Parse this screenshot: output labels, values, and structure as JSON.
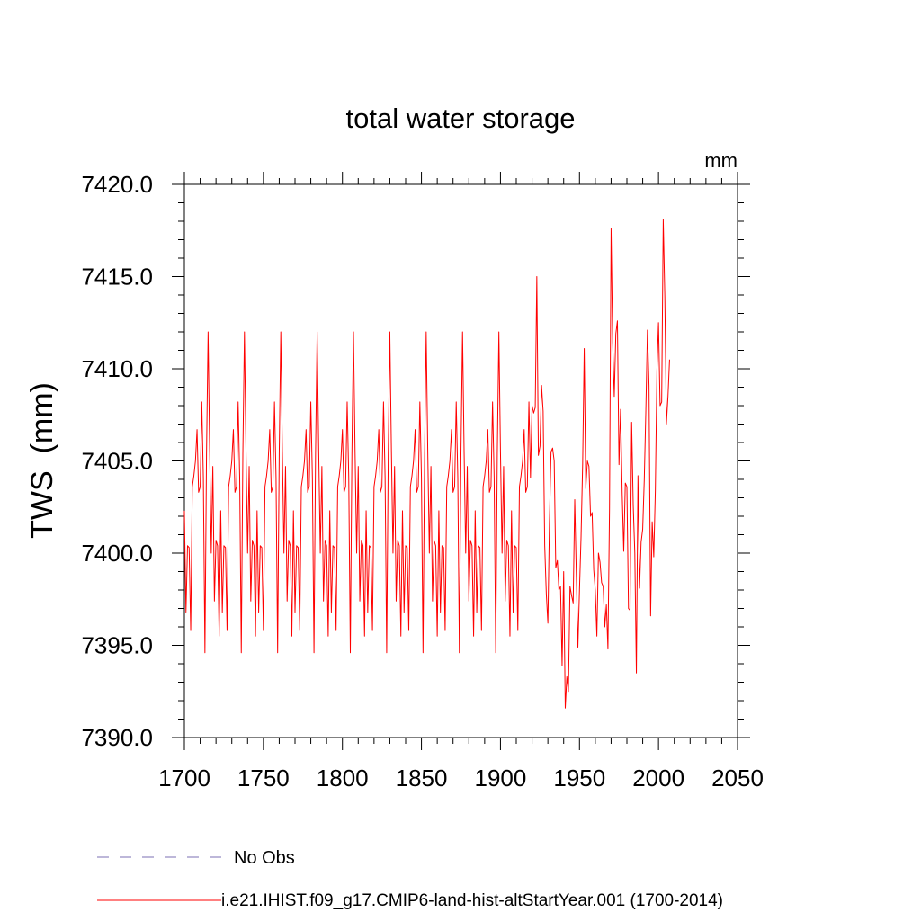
{
  "chart_data": {
    "type": "line",
    "title": "total water storage",
    "units_label": "mm",
    "ylabel": "TWS  (mm)",
    "xlabel": "",
    "xlim": [
      1700,
      2050
    ],
    "ylim": [
      7390,
      7420
    ],
    "x_ticks": [
      "1700",
      "1750",
      "1800",
      "1850",
      "1900",
      "1950",
      "2000",
      "2050"
    ],
    "y_ticks": [
      "7390.0",
      "7395.0",
      "7400.0",
      "7405.0",
      "7410.0",
      "7415.0",
      "7420.0"
    ],
    "legend_position": "bottom",
    "series": [
      {
        "name": "No Obs",
        "color": "#7b6fb3",
        "dash": "dashed",
        "x": [],
        "y": []
      },
      {
        "name": "i.e21.IHIST.f09_g17.CMIP6-land-hist-altStartYear.001 (1700-2014)",
        "color": "#ff0000",
        "dash": "solid",
        "x_start": 1700,
        "x_step": 1,
        "cycle_years": 1700,
        "cycle_values": [
          7402.3,
          7396.8,
          7400.4,
          7400.3,
          7395.8,
          7403.6,
          7404.2,
          7405.0,
          7406.7,
          7403.3,
          7403.6,
          7408.2,
          7404.1,
          7394.6,
          7405.4,
          7412.0,
          7405.5,
          7400.0,
          7404.7,
          7397.4,
          7400.7,
          7400.4,
          7395.5
        ],
        "tail_x_start": 1920,
        "tail_values": [
          7408.0,
          7407.6,
          7407.9,
          7415.0,
          7405.3,
          7405.8,
          7409.1,
          7407.7,
          7400.4,
          7397.8,
          7396.2,
          7401.7,
          7405.5,
          7405.7,
          7405.0,
          7399.2,
          7399.6,
          7398.0,
          7398.2,
          7393.9,
          7399.0,
          7391.6,
          7393.3,
          7392.5,
          7398.2,
          7397.7,
          7397.3,
          7402.9,
          7398.8,
          7394.9,
          7398.0,
          7400.9,
          7404.8,
          7411.1,
          7403.5,
          7405.0,
          7404.7,
          7402.0,
          7402.2,
          7399.1,
          7398.0,
          7395.5,
          7400.0,
          7399.5,
          7398.4,
          7398.2,
          7396.0,
          7397.2,
          7394.8,
          7402.4,
          7417.6,
          7411.4,
          7408.5,
          7411.9,
          7412.6,
          7404.8,
          7407.8,
          7403.3,
          7400.1,
          7403.8,
          7403.6,
          7397.0,
          7396.9,
          7407.1,
          7402.6,
          7400.0,
          7393.5,
          7404.2,
          7398.1,
          7400.6,
          7401.3,
          7404.0,
          7407.8,
          7412.1,
          7409.1,
          7396.6,
          7401.7,
          7399.8,
          7403.4,
          7409.9,
          7412.5,
          7408.0,
          7408.2,
          7418.1,
          7413.9,
          7407.0,
          7408.5,
          7410.5
        ]
      }
    ]
  }
}
